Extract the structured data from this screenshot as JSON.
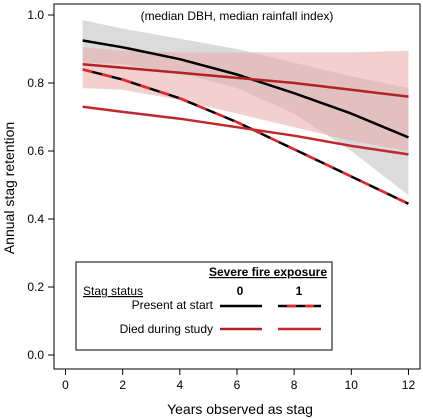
{
  "chart_data": {
    "type": "line",
    "annotation": "(median DBH, median rainfall index)",
    "xlabel": "Years observed as stag",
    "ylabel": "Annual stag retention",
    "xlim": [
      0,
      12.5
    ],
    "ylim": [
      0,
      1.0
    ],
    "x_ticks": [
      "0",
      "2",
      "4",
      "6",
      "8",
      "10",
      "12"
    ],
    "y_ticks": [
      "0.0",
      "0.2",
      "0.4",
      "0.6",
      "0.8",
      "1.0"
    ],
    "grid": false,
    "legend_placement": "bottom-center",
    "legend": {
      "title": "Stag status",
      "column_header": "Severe fire exposure",
      "columns": [
        "0",
        "1"
      ],
      "rows": [
        "Present at start",
        "Died during study"
      ]
    },
    "series": [
      {
        "status": "Present at start",
        "fire": "0",
        "color": "#000000",
        "style": "solid",
        "x": [
          0.6,
          2,
          4,
          6,
          8,
          10,
          12
        ],
        "y": [
          0.925,
          0.905,
          0.87,
          0.825,
          0.77,
          0.71,
          0.64
        ],
        "ci_lower": [
          0.86,
          0.855,
          0.83,
          0.785,
          0.71,
          0.6,
          0.47
        ],
        "ci_upper": [
          0.985,
          0.96,
          0.93,
          0.9,
          0.86,
          0.82,
          0.785
        ],
        "ci_color": "#bdbdbd"
      },
      {
        "status": "Present at start",
        "fire": "1",
        "color": "#000000",
        "dash_color": "#e8262b",
        "style": "dashed",
        "x": [
          0.6,
          2,
          4,
          6,
          8,
          10,
          12
        ],
        "y": [
          0.84,
          0.81,
          0.755,
          0.685,
          0.605,
          0.525,
          0.445
        ]
      },
      {
        "status": "Died during study",
        "fire": "0",
        "color": "#b22222",
        "style": "solid",
        "x": [
          0.6,
          2,
          4,
          6,
          8,
          10,
          12
        ],
        "y": [
          0.855,
          0.845,
          0.83,
          0.815,
          0.8,
          0.78,
          0.76
        ],
        "ci_lower": [
          0.785,
          0.78,
          0.75,
          0.71,
          0.67,
          0.63,
          0.6
        ],
        "ci_upper": [
          0.905,
          0.895,
          0.89,
          0.89,
          0.89,
          0.89,
          0.895
        ],
        "ci_color": "#e8a9a9"
      },
      {
        "status": "Died during study",
        "fire": "1",
        "color": "#c0282d",
        "style": "solid",
        "x": [
          0.6,
          2,
          4,
          6,
          8,
          10,
          12
        ],
        "y": [
          0.73,
          0.715,
          0.695,
          0.67,
          0.645,
          0.615,
          0.59
        ]
      }
    ]
  }
}
